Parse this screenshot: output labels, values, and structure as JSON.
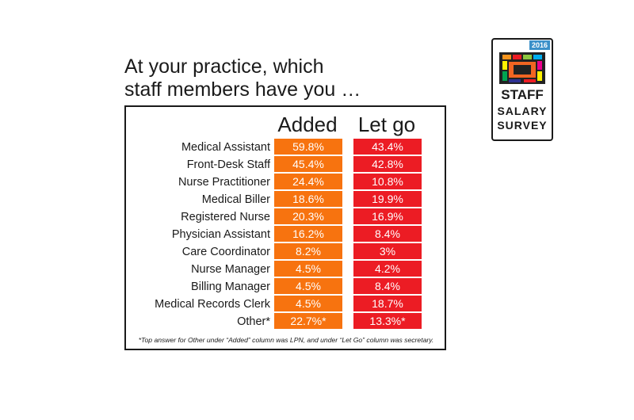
{
  "title_lines": [
    "At your practice, which",
    "staff members have you …"
  ],
  "chart_data": {
    "type": "table",
    "columns": [
      "Added",
      "Let go"
    ],
    "rows": [
      {
        "label": "Medical Assistant",
        "added": "59.8%",
        "letgo": "43.4%"
      },
      {
        "label": "Front-Desk Staff",
        "added": "45.4%",
        "letgo": "42.8%"
      },
      {
        "label": "Nurse Practitioner",
        "added": "24.4%",
        "letgo": "10.8%"
      },
      {
        "label": "Medical Biller",
        "added": "18.6%",
        "letgo": "19.9%"
      },
      {
        "label": "Registered Nurse",
        "added": "20.3%",
        "letgo": "16.9%"
      },
      {
        "label": "Physician Assistant",
        "added": "16.2%",
        "letgo": "8.4%"
      },
      {
        "label": "Care Coordinator",
        "added": "8.2%",
        "letgo": "3%"
      },
      {
        "label": "Nurse Manager",
        "added": "4.5%",
        "letgo": "4.2%"
      },
      {
        "label": "Billing Manager",
        "added": "4.5%",
        "letgo": "8.4%"
      },
      {
        "label": "Medical Records Clerk",
        "added": "4.5%",
        "letgo": "18.7%"
      },
      {
        "label": "Other*",
        "added": "22.7%*",
        "letgo": "13.3%*"
      }
    ],
    "footnote": "*Top answer for Other under “Added” column was LPN, and under “Let Go” column was secretary."
  },
  "colors": {
    "added": "#f7730f",
    "letgo": "#ec1c24"
  },
  "logo": {
    "year": "2016",
    "line1": "STAFF",
    "line2": "SALARY",
    "line3": "SURVEY"
  }
}
